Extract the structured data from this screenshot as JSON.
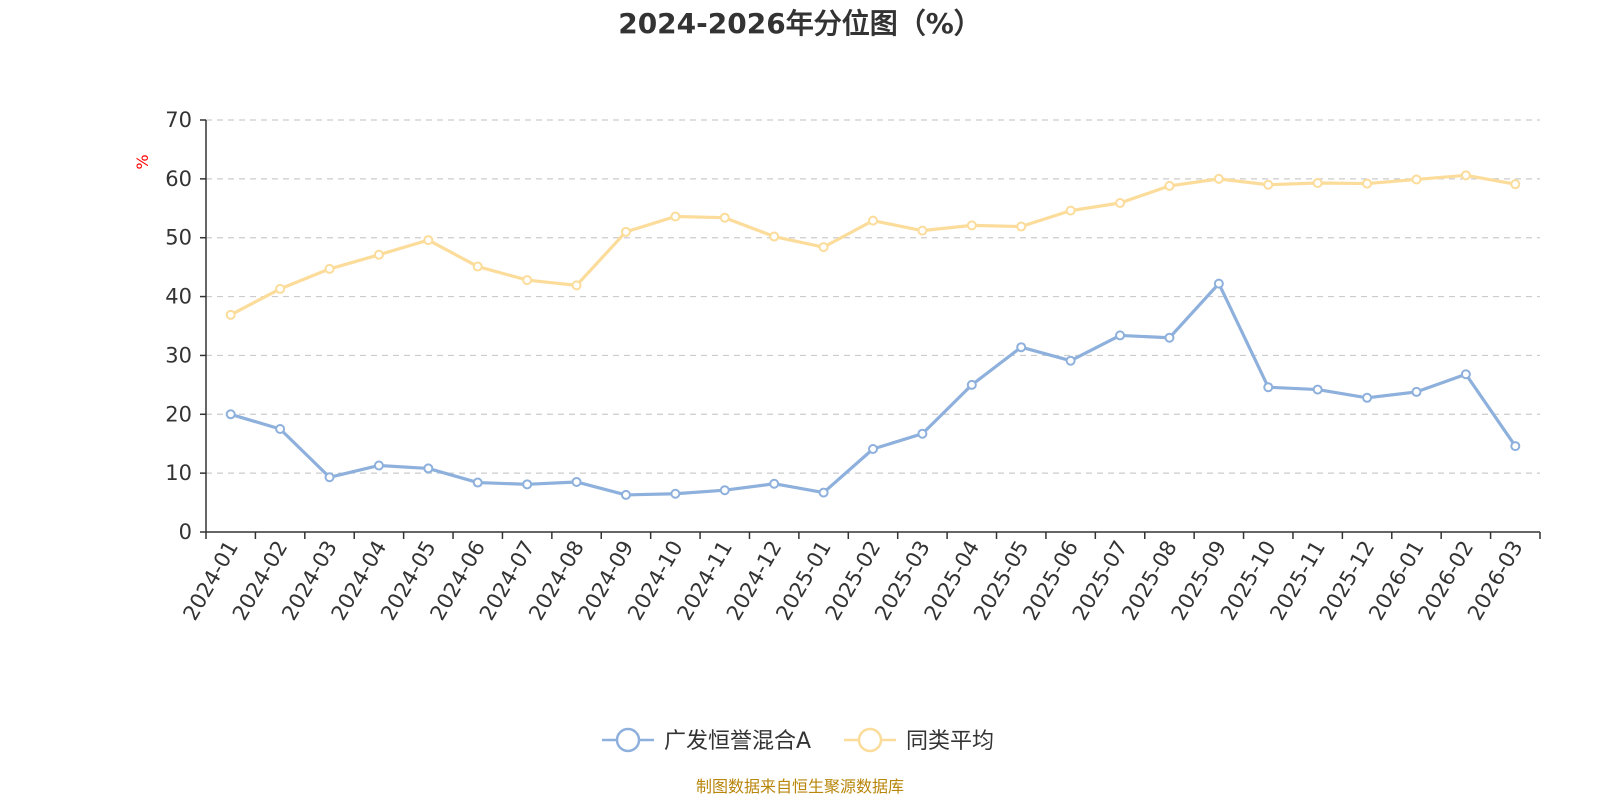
{
  "chart_data": {
    "type": "line",
    "title": "2024-2026年分位图（%）",
    "ylabel": "%",
    "ylim": [
      0,
      70
    ],
    "yticks": [
      0,
      10,
      20,
      30,
      40,
      50,
      60,
      70
    ],
    "grid": true,
    "legend_position": "bottom",
    "categories": [
      "2024-01",
      "2024-02",
      "2024-03",
      "2024-04",
      "2024-05",
      "2024-06",
      "2024-07",
      "2024-08",
      "2024-09",
      "2024-10",
      "2024-11",
      "2024-12",
      "2025-01",
      "2025-02",
      "2025-03",
      "2025-04",
      "2025-05",
      "2025-06",
      "2025-07",
      "2025-08",
      "2025-09",
      "2025-10",
      "2025-11",
      "2025-12",
      "2026-01",
      "2026-02",
      "2026-03"
    ],
    "series": [
      {
        "name": "广发恒誉混合A",
        "color": "#8eb0dc",
        "values": [
          20.0,
          17.5,
          9.3,
          11.3,
          10.8,
          8.4,
          8.1,
          8.5,
          6.3,
          6.5,
          7.1,
          8.2,
          6.7,
          14.1,
          16.7,
          25.0,
          31.4,
          29.1,
          33.4,
          33.0,
          42.2,
          24.6,
          24.2,
          22.8,
          23.8,
          26.8,
          14.6
        ]
      },
      {
        "name": "同类平均",
        "color": "#fcdc9a",
        "values": [
          36.9,
          41.3,
          44.7,
          47.1,
          49.6,
          45.1,
          42.8,
          41.9,
          51.0,
          53.6,
          53.4,
          50.2,
          48.4,
          52.9,
          51.2,
          52.1,
          51.9,
          54.6,
          55.9,
          58.8,
          60.0,
          59.0,
          59.3,
          59.2,
          59.9,
          60.6,
          59.1
        ]
      }
    ]
  },
  "footer": {
    "source": "制图数据来自恒生聚源数据库"
  }
}
